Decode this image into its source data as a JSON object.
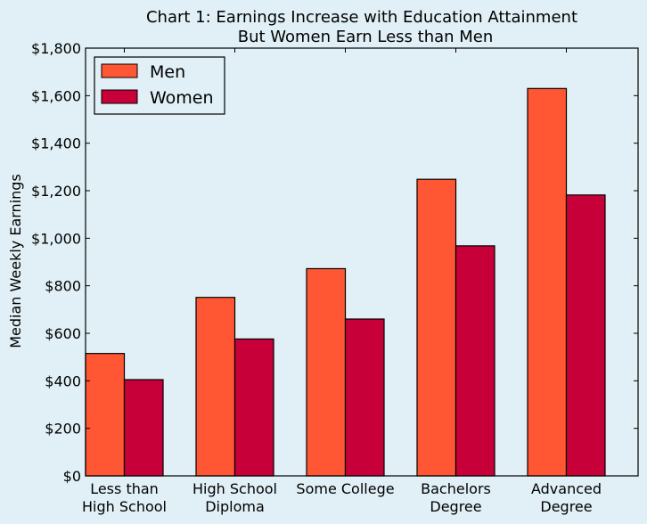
{
  "chart_data": {
    "type": "bar",
    "title_line1": "Chart 1: Earnings Increase with Education Attainment",
    "title_line2": "But Women Earn Less than Men",
    "xlabel": "",
    "ylabel": "Median Weekly Earnings",
    "categories": [
      [
        "Less than",
        "High School"
      ],
      [
        "High School",
        "Diploma"
      ],
      [
        "Some College"
      ],
      [
        "Bachelors",
        "Degree"
      ],
      [
        "Advanced",
        "Degree"
      ]
    ],
    "series": [
      {
        "name": "Men",
        "color": "#ff5733",
        "values": [
          515,
          751,
          872,
          1248,
          1630
        ]
      },
      {
        "name": "Women",
        "color": "#c70039",
        "values": [
          405,
          576,
          660,
          968,
          1182
        ]
      }
    ],
    "ylim": [
      0,
      1800
    ],
    "yticks": [
      0,
      200,
      400,
      600,
      800,
      1000,
      1200,
      1400,
      1600,
      1800
    ],
    "ytick_labels": [
      "$0",
      "$200",
      "$400",
      "$600",
      "$800",
      "$1,000",
      "$1,200",
      "$1,400",
      "$1,600",
      "$1,800"
    ],
    "legend_position": "top-left",
    "grid": false,
    "background_color": "#e0f0f6"
  }
}
